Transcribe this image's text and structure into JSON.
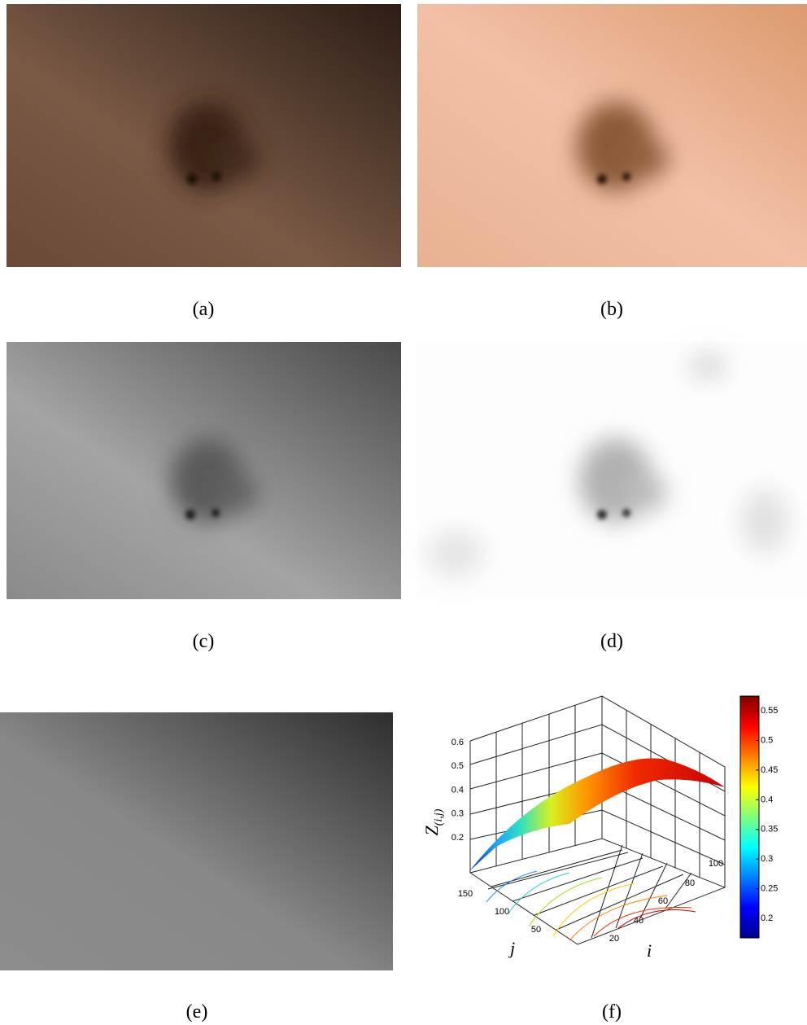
{
  "panels": [
    {
      "caption": "(a)"
    },
    {
      "caption": "(b)"
    },
    {
      "caption": "(c)"
    },
    {
      "caption": "(d)"
    },
    {
      "caption": "(e)"
    },
    {
      "caption": "(f)"
    }
  ],
  "plot": {
    "z_label": "Z",
    "z_label_sub": "(i,j)",
    "x_label": "i",
    "y_label": "j",
    "zticks": [
      0.6,
      0.5,
      0.4,
      0.3,
      0.2
    ],
    "jticks": [
      150,
      100,
      50
    ],
    "iticks": [
      20,
      40,
      60,
      80,
      100
    ],
    "colorbar_ticks": [
      0.55,
      0.5,
      0.45,
      0.4,
      0.35,
      0.3,
      0.25,
      0.2
    ]
  }
}
